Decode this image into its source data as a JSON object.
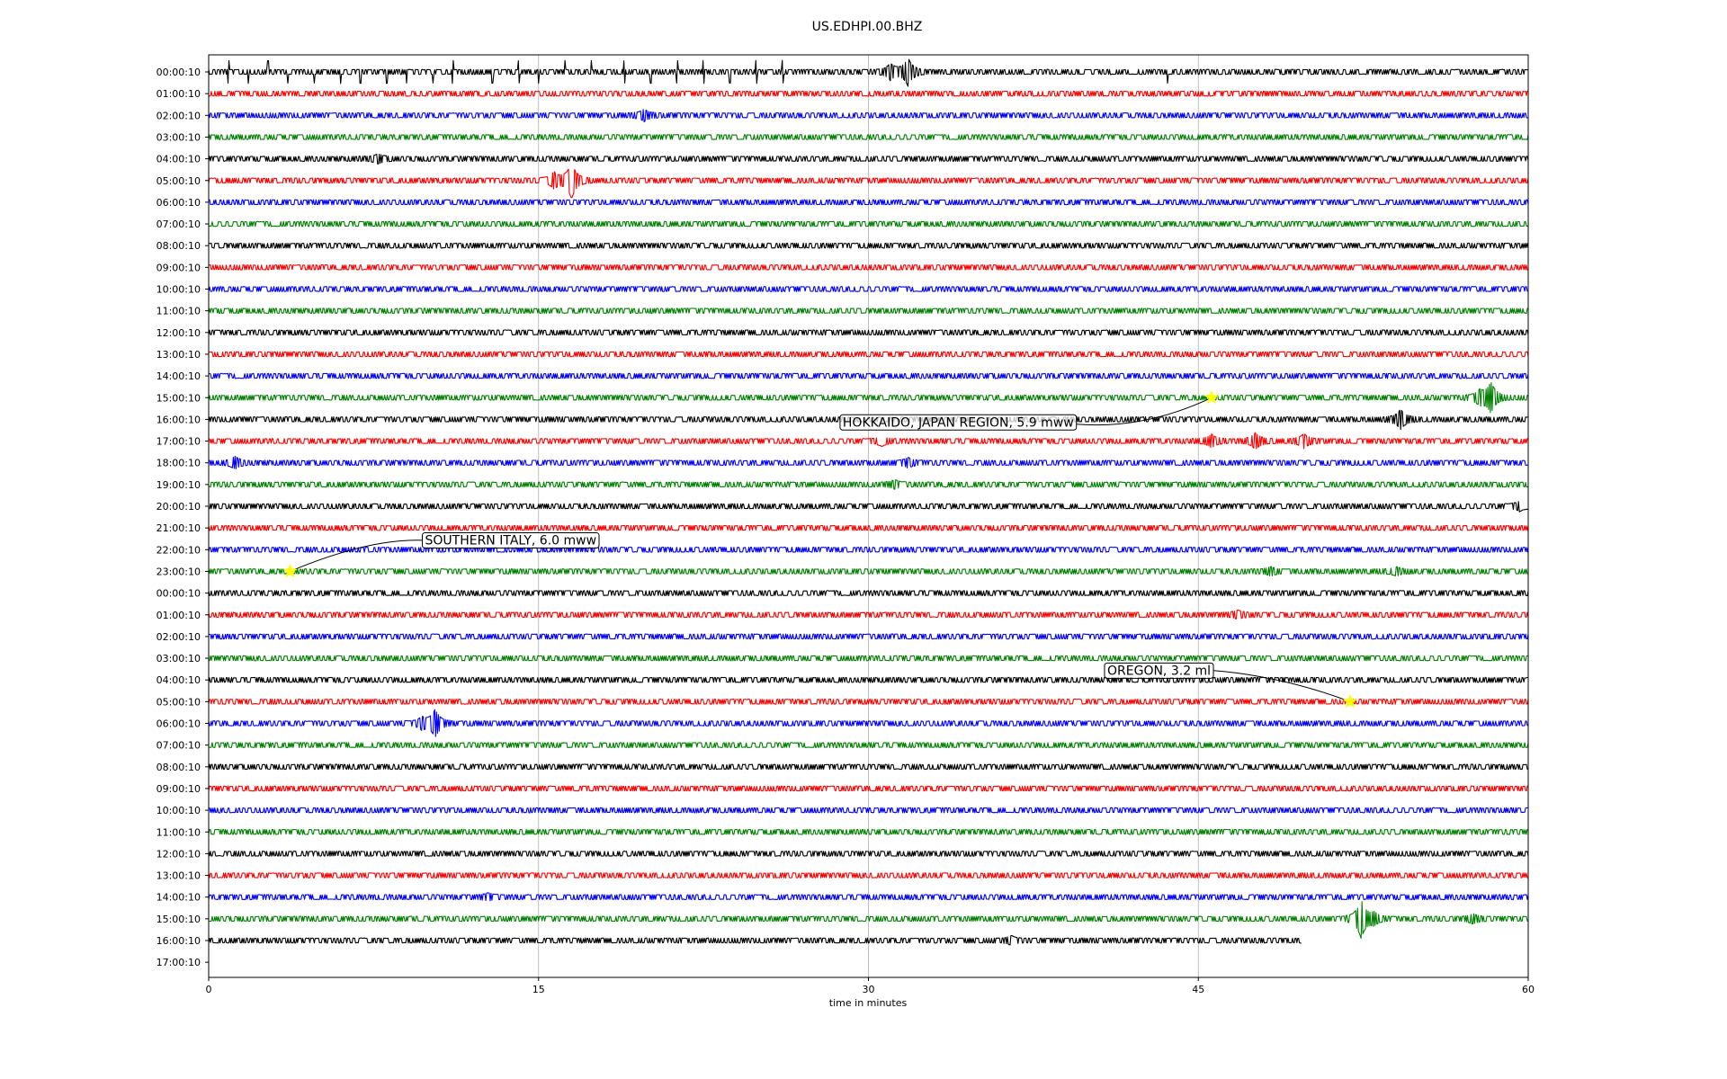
{
  "chart_data": {
    "type": "line",
    "title": "US.EDHPI.00.BHZ",
    "xlabel": "time in minutes",
    "ylabel": "",
    "xlim": [
      0,
      60
    ],
    "x_ticks": [
      "0",
      "15",
      "30",
      "45",
      "60"
    ],
    "x_tick_values": [
      0,
      15,
      30,
      45,
      60
    ],
    "grid_x": true,
    "legend": "none",
    "trace_colors": [
      "#000000",
      "#ff0000",
      "#0000ff",
      "#008000"
    ],
    "row_labels": [
      "00:00:10",
      "01:00:10",
      "02:00:10",
      "03:00:10",
      "04:00:10",
      "05:00:10",
      "06:00:10",
      "07:00:10",
      "08:00:10",
      "09:00:10",
      "10:00:10",
      "11:00:10",
      "12:00:10",
      "13:00:10",
      "14:00:10",
      "15:00:10",
      "16:00:10",
      "17:00:10",
      "18:00:10",
      "19:00:10",
      "20:00:10",
      "21:00:10",
      "22:00:10",
      "23:00:10",
      "00:00:10",
      "01:00:10",
      "02:00:10",
      "03:00:10",
      "04:00:10",
      "05:00:10",
      "06:00:10",
      "07:00:10",
      "08:00:10",
      "09:00:10",
      "10:00:10",
      "11:00:10",
      "12:00:10",
      "13:00:10",
      "14:00:10",
      "15:00:10",
      "16:00:10",
      "17:00:10"
    ],
    "last_trace_end_minute": 49.7,
    "bursts": [
      {
        "row": 0,
        "minute": 31.8,
        "amplitude": 2.2
      },
      {
        "row": 0,
        "minute": 31.0,
        "amplitude": 1.2
      },
      {
        "row": 2,
        "minute": 19.8,
        "amplitude": 0.8
      },
      {
        "row": 4,
        "minute": 7.7,
        "amplitude": 0.6
      },
      {
        "row": 5,
        "minute": 16.5,
        "amplitude": 3.0
      },
      {
        "row": 5,
        "minute": 15.7,
        "amplitude": 1.2
      },
      {
        "row": 15,
        "minute": 58.3,
        "amplitude": 2.5
      },
      {
        "row": 15,
        "minute": 57.8,
        "amplitude": 1.0
      },
      {
        "row": 16,
        "minute": 54.2,
        "amplitude": 1.5
      },
      {
        "row": 17,
        "minute": 47.6,
        "amplitude": 1.2
      },
      {
        "row": 17,
        "minute": 45.6,
        "amplitude": 0.9
      },
      {
        "row": 17,
        "minute": 49.8,
        "amplitude": 1.0
      },
      {
        "row": 17,
        "minute": 30.6,
        "amplitude": 0.6
      },
      {
        "row": 18,
        "minute": 1.2,
        "amplitude": 0.8
      },
      {
        "row": 18,
        "minute": 31.8,
        "amplitude": 0.6
      },
      {
        "row": 19,
        "minute": 31.2,
        "amplitude": 0.5
      },
      {
        "row": 20,
        "minute": 59.6,
        "amplitude": 0.6
      },
      {
        "row": 23,
        "minute": 48.3,
        "amplitude": 0.5
      },
      {
        "row": 23,
        "minute": 54.0,
        "amplitude": 0.5
      },
      {
        "row": 25,
        "minute": 46.8,
        "amplitude": 0.5
      },
      {
        "row": 30,
        "minute": 10.3,
        "amplitude": 2.2
      },
      {
        "row": 30,
        "minute": 9.7,
        "amplitude": 0.8
      },
      {
        "row": 38,
        "minute": 12.7,
        "amplitude": 0.4
      },
      {
        "row": 39,
        "minute": 52.4,
        "amplitude": 3.2
      },
      {
        "row": 39,
        "minute": 53.0,
        "amplitude": 0.8
      },
      {
        "row": 39,
        "minute": 57.5,
        "amplitude": 0.6
      },
      {
        "row": 40,
        "minute": 36.5,
        "amplitude": 0.5
      }
    ],
    "spikes_row0_minutes": [
      0.9,
      1.8,
      2.7,
      3.6,
      4.8,
      6.0,
      6.9,
      8.1,
      9.0,
      10.2,
      11.1,
      12.9,
      14.1,
      15.0,
      16.2,
      17.4,
      18.9,
      20.1,
      21.3,
      22.5,
      23.7,
      24.9,
      26.1,
      43.6
    ],
    "events": [
      {
        "label": "HOKKAIDO, JAPAN REGION, 5.9 mww",
        "row": 15,
        "minute": 45.6
      },
      {
        "label": "SOUTHERN ITALY, 6.0 mww",
        "row": 23,
        "minute": 3.7
      },
      {
        "label": "OREGON, 3.2 ml",
        "row": 29,
        "minute": 51.9
      }
    ]
  }
}
